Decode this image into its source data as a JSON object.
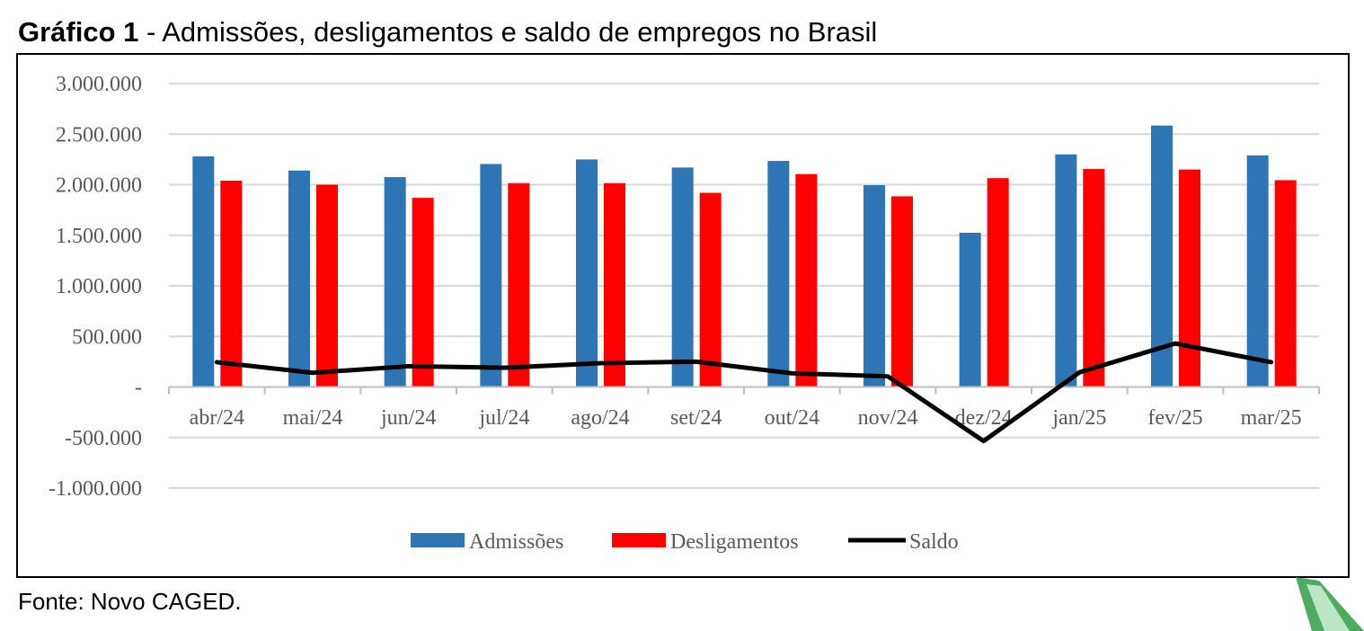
{
  "header": {
    "title_bold": "Gráfico 1",
    "title_rest": " - Admissões, desligamentos e saldo de empregos no Brasil"
  },
  "footer": {
    "source": "Fonte: Novo CAGED."
  },
  "chart_data": {
    "type": "bar",
    "title": "Gráfico 1 - Admissões, desligamentos e saldo de empregos no Brasil",
    "xlabel": "",
    "ylabel": "",
    "categories": [
      "abr/24",
      "mai/24",
      "jun/24",
      "jul/24",
      "ago/24",
      "set/24",
      "out/24",
      "nov/24",
      "dez/24",
      "jan/25",
      "fev/25",
      "mar/25"
    ],
    "series": [
      {
        "name": "Admissões",
        "kind": "bar",
        "color": "#2E75B6",
        "values": [
          2280000,
          2140000,
          2075000,
          2205000,
          2250000,
          2170000,
          2235000,
          1995000,
          1525000,
          2300000,
          2585000,
          2290000
        ]
      },
      {
        "name": "Desligamentos",
        "kind": "bar",
        "color": "#FF0000",
        "values": [
          2040000,
          2000000,
          1870000,
          2015000,
          2015000,
          1920000,
          2105000,
          1885000,
          2065000,
          2155000,
          2150000,
          2045000
        ]
      },
      {
        "name": "Saldo",
        "kind": "line",
        "color": "#000000",
        "values": [
          245000,
          140000,
          205000,
          190000,
          235000,
          250000,
          135000,
          105000,
          -535000,
          145000,
          430000,
          245000
        ]
      }
    ],
    "ylim": [
      -1000000,
      3000000
    ],
    "yticks": [
      3000000,
      2500000,
      2000000,
      1500000,
      1000000,
      500000,
      0,
      -500000,
      -1000000
    ],
    "ytick_labels": [
      "3.000.000",
      "2.500.000",
      "2.000.000",
      "1.500.000",
      "1.000.000",
      "500.000",
      "-",
      "-500.000",
      "-1.000.000"
    ],
    "grid": true,
    "legend_position": "bottom-center"
  }
}
